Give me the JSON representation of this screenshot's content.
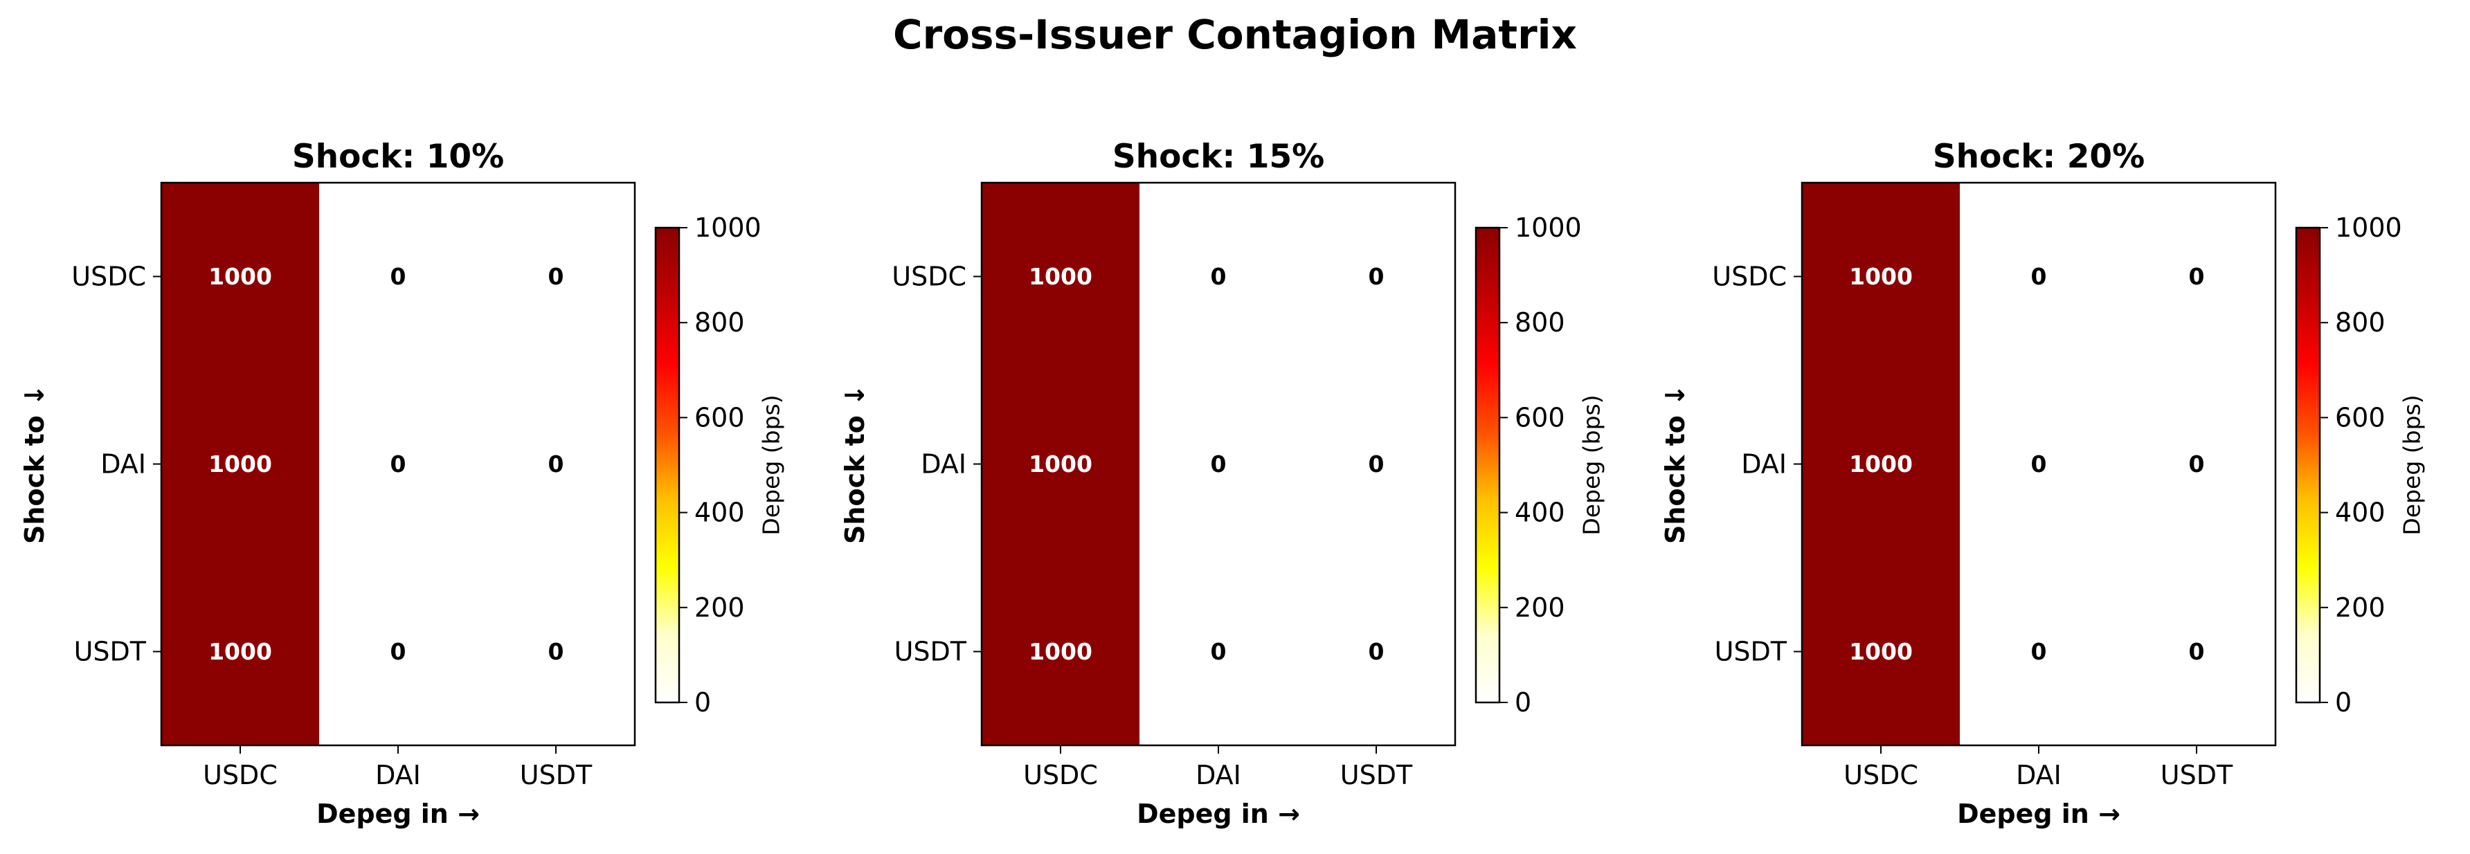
{
  "figure_title": "Cross-Issuer Contagion Matrix",
  "colors": {
    "colormap": [
      "#ffffff",
      "#ffffcc",
      "#ffff00",
      "#ffbf00",
      "#ff5000",
      "#ff0000",
      "#c00000",
      "#8b0000"
    ],
    "high_text": "#ffffff",
    "low_text": "#000000"
  },
  "chart_data": [
    {
      "type": "heatmap",
      "title": "Shock: 10%",
      "xlabel": "Depeg in →",
      "ylabel": "Shock to ↓",
      "x_categories": [
        "USDC",
        "DAI",
        "USDT"
      ],
      "y_categories": [
        "USDC",
        "DAI",
        "USDT"
      ],
      "values": [
        [
          1000,
          0,
          0
        ],
        [
          1000,
          0,
          0
        ],
        [
          1000,
          0,
          0
        ]
      ],
      "colorbar": {
        "label": "Depeg (bps)",
        "range": [
          0,
          1000
        ],
        "ticks": [
          0,
          200,
          400,
          600,
          800,
          1000
        ],
        "colormap": "hot_r"
      }
    },
    {
      "type": "heatmap",
      "title": "Shock: 15%",
      "xlabel": "Depeg in →",
      "ylabel": "Shock to ↓",
      "x_categories": [
        "USDC",
        "DAI",
        "USDT"
      ],
      "y_categories": [
        "USDC",
        "DAI",
        "USDT"
      ],
      "values": [
        [
          1000,
          0,
          0
        ],
        [
          1000,
          0,
          0
        ],
        [
          1000,
          0,
          0
        ]
      ],
      "colorbar": {
        "label": "Depeg (bps)",
        "range": [
          0,
          1000
        ],
        "ticks": [
          0,
          200,
          400,
          600,
          800,
          1000
        ],
        "colormap": "hot_r"
      }
    },
    {
      "type": "heatmap",
      "title": "Shock: 20%",
      "xlabel": "Depeg in →",
      "ylabel": "Shock to ↓",
      "x_categories": [
        "USDC",
        "DAI",
        "USDT"
      ],
      "y_categories": [
        "USDC",
        "DAI",
        "USDT"
      ],
      "values": [
        [
          1000,
          0,
          0
        ],
        [
          1000,
          0,
          0
        ],
        [
          1000,
          0,
          0
        ]
      ],
      "colorbar": {
        "label": "Depeg (bps)",
        "range": [
          0,
          1000
        ],
        "ticks": [
          0,
          200,
          400,
          600,
          800,
          1000
        ],
        "colormap": "hot_r"
      }
    }
  ]
}
